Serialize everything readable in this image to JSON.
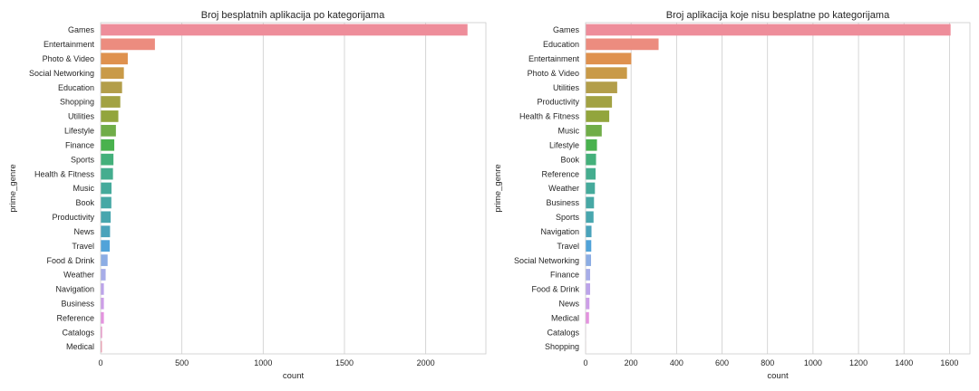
{
  "chart_data": [
    {
      "type": "bar",
      "orientation": "horizontal",
      "title": "Broj besplatnih aplikacija po kategorijama",
      "xlabel": "count",
      "ylabel": "prime_genre",
      "xlim": [
        0,
        2370
      ],
      "xticks": [
        0,
        500,
        1000,
        1500,
        2000
      ],
      "grid": "vertical",
      "categories": [
        "Games",
        "Entertainment",
        "Photo & Video",
        "Social Networking",
        "Education",
        "Shopping",
        "Utilities",
        "Lifestyle",
        "Finance",
        "Sports",
        "Health & Fitness",
        "Music",
        "Book",
        "Productivity",
        "News",
        "Travel",
        "Food & Drink",
        "Weather",
        "Navigation",
        "Business",
        "Reference",
        "Catalogs",
        "Medical"
      ],
      "values": [
        2257,
        334,
        167,
        143,
        132,
        121,
        109,
        94,
        84,
        79,
        76,
        67,
        66,
        62,
        58,
        56,
        43,
        31,
        20,
        20,
        20,
        9,
        8
      ]
    },
    {
      "type": "bar",
      "orientation": "horizontal",
      "title": "Broj aplikacija koje nisu besplatne po kategorijama",
      "xlabel": "count",
      "ylabel": "prime_genre",
      "xlim": [
        0,
        1690
      ],
      "xticks": [
        0,
        200,
        400,
        600,
        800,
        1000,
        1200,
        1400,
        1600
      ],
      "grid": "vertical",
      "categories": [
        "Games",
        "Education",
        "Entertainment",
        "Photo & Video",
        "Utilities",
        "Productivity",
        "Health & Fitness",
        "Music",
        "Lifestyle",
        "Book",
        "Reference",
        "Weather",
        "Business",
        "Sports",
        "Navigation",
        "Travel",
        "Social Networking",
        "Finance",
        "Food & Drink",
        "News",
        "Medical",
        "Catalogs",
        "Shopping"
      ],
      "values": [
        1605,
        321,
        201,
        182,
        139,
        116,
        104,
        71,
        50,
        46,
        44,
        41,
        37,
        35,
        26,
        25,
        24,
        20,
        20,
        17,
        15,
        1,
        1
      ]
    }
  ]
}
